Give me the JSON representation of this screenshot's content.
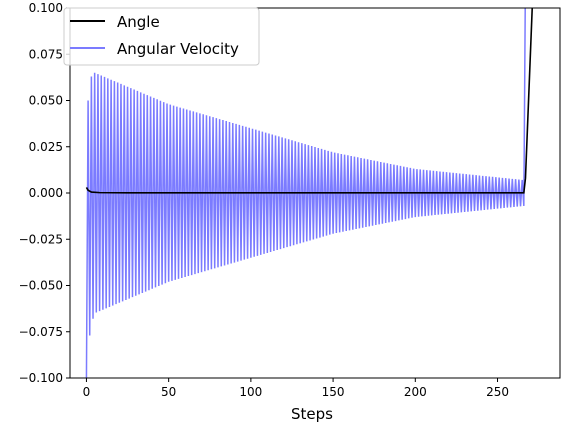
{
  "chart_data": {
    "type": "line",
    "xlabel": "Steps",
    "ylabel": "",
    "xlim": [
      -10,
      288
    ],
    "ylim": [
      -0.1,
      0.1
    ],
    "x_ticks": [
      0,
      50,
      100,
      150,
      200,
      250
    ],
    "y_ticks": [
      -0.1,
      -0.075,
      -0.05,
      -0.025,
      0.0,
      0.025,
      0.05,
      0.075,
      0.1
    ],
    "x_tick_labels": [
      "0",
      "50",
      "100",
      "150",
      "200",
      "250"
    ],
    "y_tick_labels": [
      "−0.100",
      "−0.075",
      "−0.050",
      "−0.025",
      "0.000",
      "0.025",
      "0.050",
      "0.075",
      "0.100"
    ],
    "grid": false,
    "legend_position": "top-left",
    "series": [
      {
        "name": "Angle",
        "color": "#000000",
        "style": "solid",
        "points": [
          [
            0,
            0.003
          ],
          [
            1,
            0.0015
          ],
          [
            3,
            0.0005
          ],
          [
            8,
            0.0002
          ],
          [
            30,
            0.0001
          ],
          [
            266,
            0.0001
          ],
          [
            267,
            0.008
          ],
          [
            272,
            0.12
          ]
        ]
      },
      {
        "name": "Angular Velocity",
        "color": "#7b7bff",
        "style": "oscillation",
        "x_start": 0,
        "x_end": 266,
        "step": 1,
        "initial_points": [
          [
            0,
            -0.1
          ],
          [
            1,
            0.05
          ],
          [
            2,
            -0.077
          ],
          [
            3,
            0.063
          ],
          [
            4,
            -0.068
          ],
          [
            5,
            0.065
          ]
        ],
        "decay_envelope": [
          [
            5,
            0.065
          ],
          [
            50,
            0.048
          ],
          [
            100,
            0.035
          ],
          [
            150,
            0.022
          ],
          [
            200,
            0.013
          ],
          [
            266,
            0.007
          ]
        ],
        "tail_points": [
          [
            266,
            -0.007
          ],
          [
            267,
            0.12
          ]
        ]
      }
    ]
  },
  "legend": {
    "items": [
      {
        "label": "Angle",
        "color": "#000000"
      },
      {
        "label": "Angular Velocity",
        "color": "#7b7bff"
      }
    ]
  }
}
